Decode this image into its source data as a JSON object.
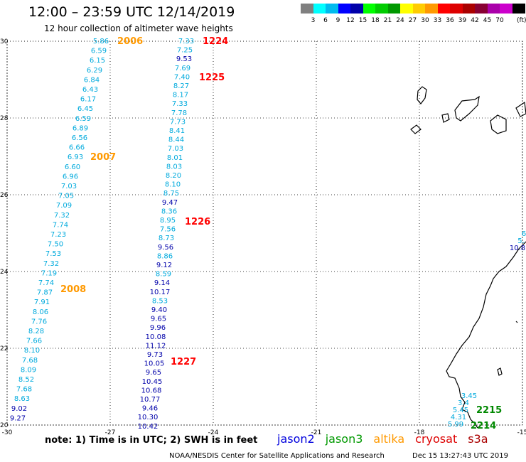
{
  "header": {
    "title": "12:00 – 23:59 UTC 12/14/2019",
    "subtitle": "12 hour collection of altimeter wave heights"
  },
  "scale": {
    "colors": [
      "#808080",
      "#00ffff",
      "#00bbee",
      "#0000ff",
      "#0000aa",
      "#00ff00",
      "#00cc00",
      "#009900",
      "#ffff00",
      "#ffcc00",
      "#ff9900",
      "#ff0000",
      "#dd0000",
      "#aa0000",
      "#880033",
      "#aa00aa",
      "#cc00cc",
      "#000000"
    ],
    "labels": [
      "3",
      "6",
      "9",
      "12",
      "15",
      "18",
      "21",
      "24",
      "27",
      "30",
      "33",
      "36",
      "39",
      "42",
      "45",
      "70"
    ],
    "unit": "(ft)"
  },
  "axes": {
    "lon_ticks": [
      "-30",
      "-27",
      "-24",
      "-21",
      "-18",
      "-15"
    ],
    "lat_ticks": [
      "30",
      "28",
      "26",
      "24",
      "22",
      "20"
    ]
  },
  "tracks": [
    {
      "name": "track-a",
      "color": "#00aadd",
      "values": [
        "5.86",
        "6.59",
        "6.15",
        "6.29",
        "6.84",
        "6.43",
        "6.17",
        "6.45",
        "6.59",
        "6.89",
        "6.56",
        "6.66",
        "6.93",
        "6.60",
        "6.96",
        "7.03",
        "7.05",
        "7.09",
        "7.32",
        "7.74",
        "7.23",
        "7.50",
        "7.53",
        "7.32",
        "7.19",
        "7.74",
        "7.87",
        "7.91",
        "8.06",
        "7.76",
        "8.28",
        "7.66",
        "8.10",
        "7.68",
        "8.09",
        "8.52",
        "7.68",
        "8.63",
        "9.02",
        "9.27"
      ]
    },
    {
      "name": "track-b",
      "color": "#00aadd",
      "values": [
        "7.33",
        "7.25",
        "9.53",
        "7.69",
        "7.40",
        "8.27",
        "8.17",
        "7.33",
        "7.78",
        "7.73",
        "8.41",
        "8.44",
        "7.03",
        "8.01",
        "8.03",
        "8.20",
        "8.10",
        "8.75",
        "9.47",
        "8.36",
        "8.95",
        "7.56",
        "8.73",
        "9.56",
        "8.86",
        "9.12",
        "8.59",
        "9.14",
        "10.17",
        "8.53",
        "9.40",
        "9.65",
        "9.96",
        "10.08",
        "11.12",
        "9.73",
        "10.05",
        "9.65",
        "10.45",
        "10.68",
        "10.77",
        "9.46",
        "10.30",
        "10.42"
      ]
    },
    {
      "name": "track-c",
      "color": "#00aadd",
      "values": [
        "3.45",
        "3.4",
        "5.45",
        "4.31",
        "5.99"
      ]
    },
    {
      "name": "track-d",
      "color": "#00aadd",
      "values": [
        "6",
        "5.",
        "10.8"
      ]
    }
  ],
  "time_labels": [
    {
      "text": "2006",
      "color": "#ff9900"
    },
    {
      "text": "2007",
      "color": "#ff9900"
    },
    {
      "text": "2008",
      "color": "#ff9900"
    },
    {
      "text": "1224",
      "color": "#ff0000"
    },
    {
      "text": "1225",
      "color": "#ff0000"
    },
    {
      "text": "1226",
      "color": "#ff0000"
    },
    {
      "text": "1227",
      "color": "#ff0000"
    },
    {
      "text": "2215",
      "color": "#008800"
    },
    {
      "text": "2214",
      "color": "#008800"
    }
  ],
  "footer": {
    "note": "note: 1) Time is in UTC; 2) SWH is in feet",
    "satellites": [
      {
        "name": "jason2",
        "color": "#0000dd"
      },
      {
        "name": "jason3",
        "color": "#009900"
      },
      {
        "name": "altika",
        "color": "#ff9900"
      },
      {
        "name": "cryosat",
        "color": "#dd0000"
      },
      {
        "name": "s3a",
        "color": "#aa0000"
      }
    ],
    "credit": "NOAA/NESDIS Center for Satellite Applications and Research",
    "timestamp": "Dec 15 13:27:43 UTC 2019"
  }
}
